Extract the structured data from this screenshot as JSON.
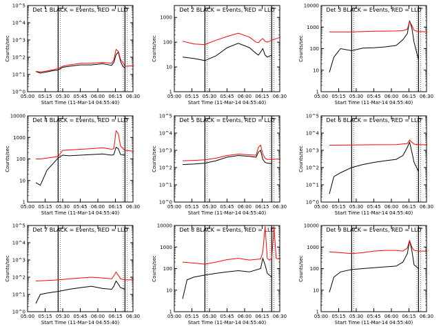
{
  "figure": {
    "ylabel": "Counts/sec",
    "xlabel": "Start Time (11-Mar-14 04:55:40)",
    "x_ticks": [
      "05:00",
      "05:15",
      "05:30",
      "05:45",
      "06:00",
      "06:15",
      "06:30"
    ]
  },
  "chart_data": [
    {
      "type": "line",
      "title": "Det 1 BLACK = Events, RED = LLD",
      "ylabel": "Counts/sec",
      "xlabel": "Start Time (11-Mar-14 04:55:40)",
      "yscale": "log",
      "ylim_exp": [
        0,
        5
      ],
      "ytick_labels": [
        "10^0",
        "10^1",
        "10^2",
        "10^3",
        "10^4",
        "10^5"
      ],
      "xlim_min": [
        0,
        40
      ],
      "vlines_min": [
        10,
        40
      ],
      "series": [
        {
          "name": "Events",
          "color": "#000000",
          "x": [
            0,
            2,
            5,
            8,
            10,
            12,
            15,
            20,
            25,
            30,
            34,
            35,
            36,
            37,
            38,
            39,
            40
          ],
          "y": [
            15,
            12,
            14,
            17,
            18,
            26,
            30,
            36,
            36,
            42,
            34,
            50,
            140,
            200,
            58,
            30,
            24
          ]
        },
        {
          "name": "LLD",
          "color": "#ff0000",
          "x": [
            0,
            2,
            5,
            8,
            10,
            12,
            15,
            20,
            25,
            30,
            34,
            35,
            36,
            37,
            38,
            39,
            40,
            44
          ],
          "y": [
            15,
            14,
            16,
            19,
            22,
            30,
            36,
            44,
            45,
            50,
            45,
            70,
            280,
            220,
            75,
            50,
            30,
            32
          ]
        }
      ]
    },
    {
      "type": "line",
      "title": "Det 2 BLACK = Events, RED = LLD",
      "ylabel": "Counts/sec",
      "xlabel": "Start Time (11-Mar-14 04:55:40)",
      "yscale": "log",
      "ylim_exp": [
        0,
        3.48
      ],
      "ytick_labels": [
        "1",
        "10",
        "100",
        "1000"
      ],
      "xlim_min": [
        0,
        40
      ],
      "vlines_min": [
        10,
        40
      ],
      "series": [
        {
          "name": "Events",
          "color": "#000000",
          "x": [
            0,
            5,
            10,
            15,
            20,
            25,
            30,
            33,
            34,
            35,
            36,
            37,
            38,
            40
          ],
          "y": [
            25,
            22,
            18,
            28,
            60,
            90,
            60,
            35,
            30,
            40,
            55,
            30,
            25,
            30
          ]
        },
        {
          "name": "LLD",
          "color": "#ff0000",
          "x": [
            0,
            5,
            10,
            15,
            20,
            25,
            30,
            33,
            34,
            35,
            36,
            37,
            38,
            40,
            44
          ],
          "y": [
            110,
            85,
            80,
            120,
            170,
            230,
            160,
            100,
            95,
            120,
            140,
            110,
            100,
            120,
            160
          ]
        }
      ]
    },
    {
      "type": "line",
      "title": "Det 3 BLACK = Events, RED = LLD",
      "ylabel": "Counts/sec",
      "xlabel": "Start Time (11-Mar-14 04:55:40)",
      "yscale": "log",
      "ylim_exp": [
        0,
        4
      ],
      "ytick_labels": [
        "1",
        "10",
        "100",
        "1000",
        "10000"
      ],
      "xlim_min": [
        0,
        40
      ],
      "vlines_min": [
        10,
        40
      ],
      "series": [
        {
          "name": "Events",
          "color": "#000000",
          "x": [
            0,
            2,
            5,
            10,
            15,
            20,
            25,
            30,
            33,
            35,
            36,
            37,
            38,
            40
          ],
          "y": [
            8,
            40,
            100,
            80,
            105,
            110,
            120,
            140,
            260,
            500,
            2000,
            900,
            200,
            30
          ]
        },
        {
          "name": "LLD",
          "color": "#ff0000",
          "x": [
            0,
            5,
            10,
            15,
            20,
            25,
            30,
            33,
            35,
            36,
            37,
            38,
            40,
            44
          ],
          "y": [
            600,
            600,
            600,
            620,
            640,
            650,
            660,
            680,
            800,
            1800,
            1200,
            700,
            620,
            600
          ]
        }
      ]
    },
    {
      "type": "line",
      "title": "Det 4 BLACK = Events, RED = LLD",
      "ylabel": "Counts/sec",
      "xlabel": "Start Time (11-Mar-14 04:55:40)",
      "yscale": "log",
      "ylim_exp": [
        0,
        4
      ],
      "ytick_labels": [
        "1",
        "10",
        "100",
        "1000",
        "10000"
      ],
      "xlim_min": [
        0,
        40
      ],
      "vlines_min": [
        10,
        40
      ],
      "series": [
        {
          "name": "Events",
          "color": "#000000",
          "x": [
            0,
            2,
            5,
            10,
            12,
            15,
            20,
            25,
            30,
            34,
            35,
            36,
            37,
            38,
            40
          ],
          "y": [
            8,
            6,
            30,
            110,
            150,
            140,
            150,
            160,
            170,
            150,
            160,
            350,
            300,
            160,
            150
          ]
        },
        {
          "name": "LLD",
          "color": "#ff0000",
          "x": [
            0,
            2,
            5,
            10,
            12,
            15,
            20,
            25,
            30,
            34,
            35,
            36,
            37,
            38,
            40,
            44
          ],
          "y": [
            100,
            100,
            110,
            130,
            250,
            260,
            280,
            300,
            330,
            280,
            300,
            2000,
            1500,
            400,
            250,
            230
          ]
        }
      ]
    },
    {
      "type": "line",
      "title": "Det 5 BLACK = Events, RED = LLD",
      "ylabel": "Counts/sec",
      "xlabel": "Start Time (11-Mar-14 04:55:40)",
      "yscale": "log",
      "ylim_exp": [
        0,
        5
      ],
      "ytick_labels": [
        "10^0",
        "10^1",
        "10^2",
        "10^3",
        "10^4",
        "10^5"
      ],
      "xlim_min": [
        0,
        40
      ],
      "vlines_min": [
        10,
        40
      ],
      "series": [
        {
          "name": "Events",
          "color": "#000000",
          "x": [
            0,
            5,
            10,
            15,
            20,
            25,
            30,
            33,
            34,
            35,
            36,
            37,
            38,
            40
          ],
          "y": [
            150,
            160,
            180,
            250,
            400,
            500,
            450,
            400,
            800,
            1000,
            300,
            200,
            180,
            170
          ]
        },
        {
          "name": "LLD",
          "color": "#ff0000",
          "x": [
            0,
            5,
            10,
            15,
            20,
            25,
            30,
            33,
            34,
            35,
            36,
            37,
            38,
            40,
            44
          ],
          "y": [
            250,
            260,
            280,
            350,
            500,
            600,
            550,
            520,
            1500,
            2000,
            600,
            350,
            300,
            300,
            320
          ]
        }
      ]
    },
    {
      "type": "line",
      "title": "Det 6 BLACK = Events, RED = LLD",
      "ylabel": "Counts/sec",
      "xlabel": "Start Time (11-Mar-14 04:55:40)",
      "yscale": "log",
      "ylim_exp": [
        0,
        5
      ],
      "ytick_labels": [
        "10^0",
        "10^1",
        "10^2",
        "10^3",
        "10^4",
        "10^5"
      ],
      "xlim_min": [
        0,
        40
      ],
      "vlines_min": [
        10,
        40
      ],
      "series": [
        {
          "name": "Events",
          "color": "#000000",
          "x": [
            0,
            2,
            5,
            10,
            15,
            20,
            25,
            30,
            33,
            35,
            36,
            37,
            38,
            40
          ],
          "y": [
            3,
            30,
            50,
            100,
            150,
            200,
            250,
            300,
            500,
            1500,
            3000,
            800,
            200,
            60
          ]
        },
        {
          "name": "LLD",
          "color": "#ff0000",
          "x": [
            0,
            10,
            20,
            30,
            35,
            36,
            37,
            38,
            40,
            44
          ],
          "y": [
            2000,
            2050,
            2100,
            2150,
            2500,
            4000,
            3000,
            2300,
            2100,
            2100
          ]
        }
      ]
    },
    {
      "type": "line",
      "title": "Det 7 BLACK = Events, RED = LLD",
      "ylabel": "Counts/sec",
      "xlabel": "Start Time (11-Mar-14 04:55:40)",
      "yscale": "log",
      "ylim_exp": [
        0,
        5
      ],
      "ytick_labels": [
        "10^0",
        "10^1",
        "10^2",
        "10^3",
        "10^4",
        "10^5"
      ],
      "xlim_min": [
        0,
        40
      ],
      "vlines_min": [
        10,
        40
      ],
      "series": [
        {
          "name": "Events",
          "color": "#000000",
          "x": [
            0,
            2,
            5,
            10,
            15,
            20,
            25,
            30,
            34,
            35,
            36,
            37,
            38,
            40
          ],
          "y": [
            3,
            10,
            12,
            15,
            20,
            25,
            30,
            22,
            20,
            30,
            60,
            40,
            25,
            20
          ]
        },
        {
          "name": "LLD",
          "color": "#ff0000",
          "x": [
            0,
            5,
            10,
            15,
            20,
            25,
            30,
            34,
            35,
            36,
            37,
            38,
            40,
            44
          ],
          "y": [
            60,
            65,
            70,
            80,
            90,
            100,
            90,
            80,
            120,
            200,
            130,
            80,
            70,
            70
          ]
        }
      ]
    },
    {
      "type": "line",
      "title": "Det 8 BLACK = Events, RED = LLD",
      "ylabel": "Counts/sec",
      "xlabel": "Start Time (11-Mar-14 04:55:40)",
      "yscale": "log",
      "ylim_exp": [
        0,
        4
      ],
      "ytick_labels": [
        "1",
        "10",
        "100",
        "1000",
        "10000"
      ],
      "xlim_min": [
        0,
        40
      ],
      "vlines_min": [
        10,
        40
      ],
      "series": [
        {
          "name": "Events",
          "color": "#000000",
          "x": [
            0,
            2,
            5,
            10,
            15,
            20,
            25,
            30,
            35,
            36,
            37,
            38,
            40
          ],
          "y": [
            4,
            30,
            40,
            50,
            60,
            70,
            80,
            70,
            100,
            300,
            150,
            60,
            40
          ]
        },
        {
          "name": "LLD",
          "color": "#ff0000",
          "x": [
            0,
            5,
            10,
            15,
            20,
            25,
            30,
            35,
            36,
            37,
            38,
            39,
            40,
            41,
            42,
            43,
            44
          ],
          "y": [
            200,
            180,
            160,
            200,
            260,
            300,
            250,
            280,
            600,
            9000,
            300,
            250,
            300,
            9000,
            300,
            280,
            300
          ]
        }
      ]
    },
    {
      "type": "line",
      "title": "Det 9 BLACK = Events, RED = LLD",
      "ylabel": "Counts/sec",
      "xlabel": "Start Time (11-Mar-14 04:55:40)",
      "yscale": "log",
      "ylim_exp": [
        0,
        4
      ],
      "ytick_labels": [
        "1",
        "10",
        "100",
        "1000",
        "10000"
      ],
      "xlim_min": [
        0,
        40
      ],
      "vlines_min": [
        10,
        40
      ],
      "series": [
        {
          "name": "Events",
          "color": "#000000",
          "x": [
            0,
            2,
            5,
            10,
            15,
            20,
            25,
            30,
            33,
            35,
            36,
            37,
            38,
            40
          ],
          "y": [
            8,
            40,
            70,
            90,
            100,
            110,
            120,
            130,
            200,
            500,
            2000,
            700,
            150,
            100
          ]
        },
        {
          "name": "LLD",
          "color": "#ff0000",
          "x": [
            0,
            5,
            10,
            15,
            20,
            25,
            30,
            33,
            35,
            36,
            37,
            38,
            40,
            44
          ],
          "y": [
            600,
            550,
            500,
            550,
            650,
            700,
            700,
            650,
            900,
            2000,
            1000,
            700,
            650,
            650
          ]
        }
      ]
    }
  ]
}
